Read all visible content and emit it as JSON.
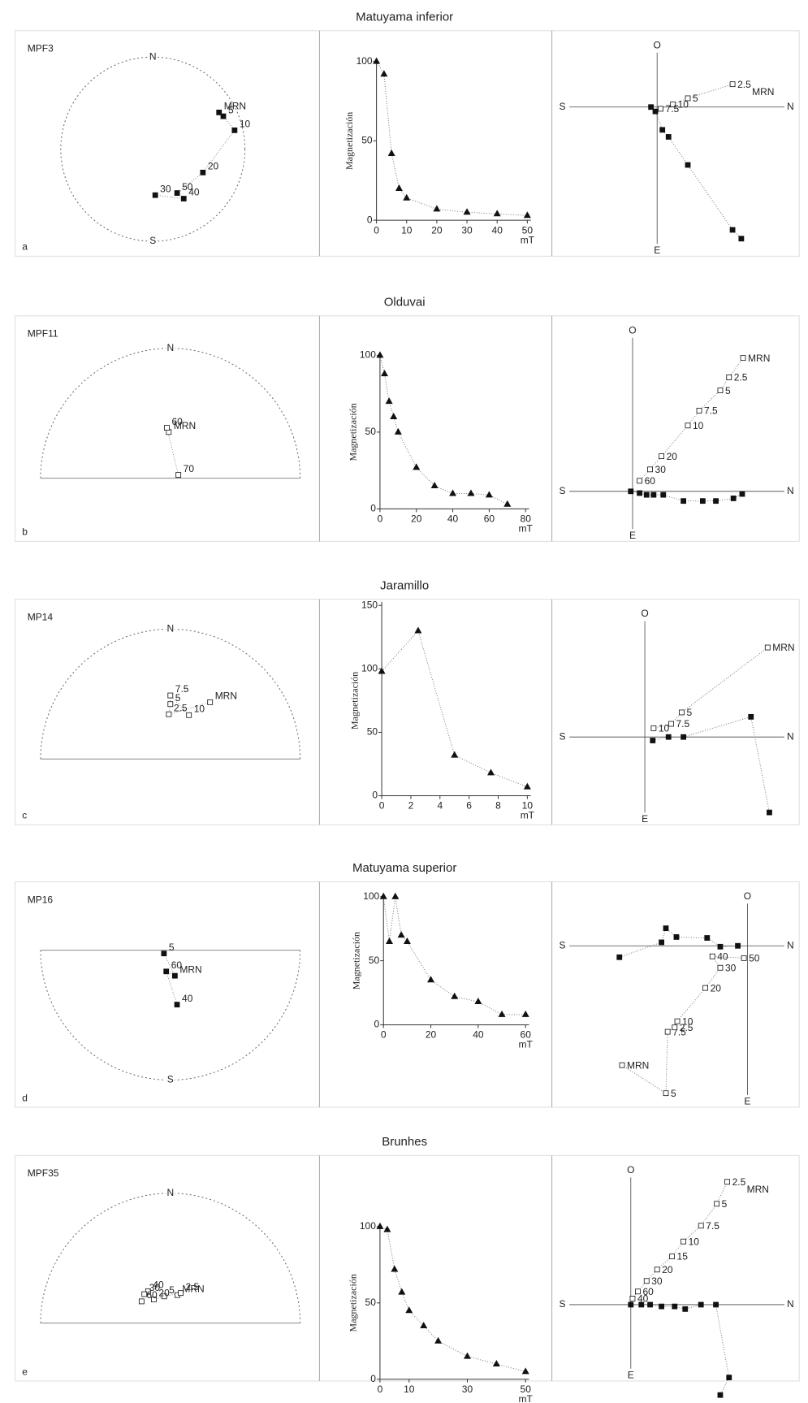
{
  "figure": {
    "rows": [
      {
        "title": "Matuyama inferior",
        "panel_label": "a",
        "sample": "MPF3",
        "stereonet": {
          "hemisphere": "full",
          "north_label": "N",
          "south_label": "S",
          "points": [
            {
              "label": "MRN",
              "dec": 61,
              "inc": 16
            },
            {
              "label": "5",
              "dec": 65,
              "inc": 14
            },
            {
              "label": "10",
              "dec": 77,
              "inc": 8
            },
            {
              "label": "20",
              "dec": 115,
              "inc": 36
            },
            {
              "label": "50",
              "dec": 151,
              "inc": 41
            },
            {
              "label": "40",
              "dec": 148,
              "inc": 33
            },
            {
              "label": "30",
              "dec": 177,
              "inc": 45
            }
          ]
        },
        "demag": {
          "type": "line",
          "y_label": "Magnetización",
          "x_unit": "mT",
          "x": [
            0,
            2.5,
            5,
            7.5,
            10,
            20,
            30,
            40,
            50
          ],
          "values": [
            100,
            92,
            42,
            20,
            14,
            7,
            5,
            4,
            3
          ],
          "xlim": [
            0,
            50
          ],
          "ylim": [
            0,
            100
          ],
          "xticks": [
            0,
            10,
            20,
            30,
            40,
            50
          ],
          "yticks": [
            0,
            50,
            100
          ]
        },
        "zijderveld": {
          "axis_labels": {
            "up": "O",
            "left": "S",
            "right": "N",
            "down": "E"
          },
          "horizontal": [
            {
              "n": -7,
              "e": 0
            },
            {
              "n": -2,
              "e": 5
            },
            {
              "n": 6,
              "e": 26
            },
            {
              "n": 13,
              "e": 34
            },
            {
              "n": 35,
              "e": 66
            },
            {
              "n": 86,
              "e": 140
            },
            {
              "n": 96,
              "e": 150
            }
          ],
          "vertical": [
            {
              "n": 86,
              "up": 26,
              "label": "2.5"
            },
            {
              "n": 35,
              "up": 10,
              "label": "5"
            },
            {
              "n": 18,
              "up": 3,
              "label": "10"
            },
            {
              "n": 4,
              "up": -2,
              "label": "7.5"
            }
          ],
          "mrn_label": "MRN"
        }
      },
      {
        "title": "Olduvai",
        "panel_label": "b",
        "sample": "MPF11",
        "stereonet": {
          "hemisphere": "upper",
          "north_label": "N",
          "points": [
            {
              "label": "MRN",
              "dec": 358,
              "inc": -58
            },
            {
              "label": "60",
              "dec": 356,
              "inc": -55
            },
            {
              "label": "70",
              "dec": 68,
              "inc": -84
            }
          ]
        },
        "demag": {
          "type": "line",
          "y_label": "Magnetización",
          "x_unit": "mT",
          "x": [
            0,
            2.5,
            5,
            7.5,
            10,
            20,
            30,
            40,
            50,
            60,
            70
          ],
          "values": [
            100,
            88,
            70,
            60,
            50,
            27,
            15,
            10,
            10,
            9,
            3
          ],
          "xlim": [
            0,
            80
          ],
          "ylim": [
            0,
            100
          ],
          "xticks": [
            0,
            20,
            40,
            60,
            80
          ],
          "yticks": [
            0,
            50,
            100
          ]
        },
        "zijderveld": {
          "axis_labels": {
            "up": "O",
            "left": "S",
            "right": "N",
            "down": "E"
          },
          "horizontal": [
            {
              "n": -2,
              "e": 0
            },
            {
              "n": 8,
              "e": 2
            },
            {
              "n": 16,
              "e": 4
            },
            {
              "n": 24,
              "e": 4
            },
            {
              "n": 35,
              "e": 4
            },
            {
              "n": 58,
              "e": 11
            },
            {
              "n": 80,
              "e": 11
            },
            {
              "n": 95,
              "e": 11
            },
            {
              "n": 115,
              "e": 8
            },
            {
              "n": 125,
              "e": 3
            }
          ],
          "vertical": [
            {
              "n": 126,
              "up": 152,
              "label": "MRN"
            },
            {
              "n": 110,
              "up": 130,
              "label": "2.5"
            },
            {
              "n": 100,
              "up": 115,
              "label": "5"
            },
            {
              "n": 76,
              "up": 92,
              "label": "7.5"
            },
            {
              "n": 63,
              "up": 75,
              "label": "10"
            },
            {
              "n": 33,
              "up": 40,
              "label": "20"
            },
            {
              "n": 20,
              "up": 25,
              "label": "30"
            },
            {
              "n": 8,
              "up": 12,
              "label": "60"
            }
          ]
        }
      },
      {
        "title": "Jaramillo",
        "panel_label": "c",
        "sample": "MP14",
        "stereonet": {
          "hemisphere": "upper",
          "north_label": "N",
          "points": [
            {
              "label": "MRN",
              "dec": 35,
              "inc": -42
            },
            {
              "label": "2.5",
              "dec": 358,
              "inc": -59
            },
            {
              "label": "5",
              "dec": 0,
              "inc": -52
            },
            {
              "label": "7.5",
              "dec": 0,
              "inc": -46
            },
            {
              "label": "10",
              "dec": 23,
              "inc": -57
            }
          ]
        },
        "demag": {
          "type": "line",
          "y_label": "Magnetización",
          "x_unit": "mT",
          "x": [
            0,
            2.5,
            5,
            7.5,
            10
          ],
          "values": [
            98,
            130,
            32,
            18,
            7
          ],
          "xlim": [
            0,
            10
          ],
          "ylim": [
            0,
            150
          ],
          "xticks": [
            0,
            2,
            4,
            6,
            8,
            10
          ],
          "yticks": [
            0,
            50,
            100,
            150
          ]
        },
        "zijderveld": {
          "axis_labels": {
            "up": "O",
            "left": "S",
            "right": "N",
            "down": "E"
          },
          "horizontal": [
            {
              "n": 9,
              "e": 4
            },
            {
              "n": 27,
              "e": 0
            },
            {
              "n": 44,
              "e": 0
            },
            {
              "n": 121,
              "e": -23
            },
            {
              "n": 142,
              "e": 86
            }
          ],
          "vertical": [
            {
              "n": 140,
              "up": 102,
              "label": "MRN"
            },
            {
              "n": 42,
              "up": 28,
              "label": "5"
            },
            {
              "n": 30,
              "up": 15,
              "label": "7.5"
            },
            {
              "n": 10,
              "up": 10,
              "label": "10"
            }
          ]
        }
      },
      {
        "title": "Matuyama superior",
        "panel_label": "d",
        "sample": "MP16",
        "stereonet": {
          "hemisphere": "lower",
          "south_label": "S",
          "points": [
            {
              "label": "5",
              "dec": 243,
              "inc": 85
            },
            {
              "label": "MRN",
              "dec": 170,
              "inc": 72
            },
            {
              "label": "60",
              "dec": 191,
              "inc": 75
            },
            {
              "label": "40",
              "dec": 173,
              "inc": 52
            }
          ]
        },
        "demag": {
          "type": "line",
          "y_label": "Magnetización",
          "x_unit": "mT",
          "x": [
            0,
            2.5,
            5,
            7.5,
            10,
            20,
            30,
            40,
            50,
            60
          ],
          "values": [
            100,
            65,
            100,
            70,
            65,
            35,
            22,
            18,
            8,
            8
          ],
          "xlim": [
            0,
            60
          ],
          "ylim": [
            0,
            100
          ],
          "xticks": [
            0,
            20,
            40,
            60
          ],
          "yticks": [
            0,
            50,
            100
          ]
        },
        "zijderveld": {
          "axis_labels": {
            "up": "O",
            "left": "S",
            "right": "N",
            "down": "E"
          },
          "horizontal": [
            {
              "n": -146,
              "e": 13
            },
            {
              "n": -98,
              "e": -4
            },
            {
              "n": -93,
              "e": -20
            },
            {
              "n": -81,
              "e": -10
            },
            {
              "n": -46,
              "e": -9
            },
            {
              "n": -31,
              "e": 1
            },
            {
              "n": -11,
              "e": 0
            }
          ],
          "vertical": [
            {
              "n": -143,
              "up": -136,
              "label": "MRN"
            },
            {
              "n": -93,
              "up": -168,
              "label": "5"
            },
            {
              "n": -91,
              "up": -98,
              "label": "7.5"
            },
            {
              "n": -83,
              "up": -93,
              "label": "2.5"
            },
            {
              "n": -80,
              "up": -86,
              "label": "10"
            },
            {
              "n": -48,
              "up": -48,
              "label": "20"
            },
            {
              "n": -31,
              "up": -25,
              "label": "30"
            },
            {
              "n": -40,
              "up": -12,
              "label": "40"
            },
            {
              "n": -4,
              "up": -14,
              "label": "50"
            }
          ]
        }
      },
      {
        "title": "Brunhes",
        "panel_label": "e",
        "sample": "MPF35",
        "stereonet": {
          "hemisphere": "upper",
          "north_label": "N",
          "points": [
            {
              "label": "MRN",
              "dec": 14,
              "inc": -70
            },
            {
              "label": "2.5",
              "dec": 19,
              "inc": -68
            },
            {
              "label": "5",
              "dec": 347,
              "inc": -71
            },
            {
              "label": "20",
              "dec": 325,
              "inc": -70
            },
            {
              "label": "40",
              "dec": 325,
              "inc": -63
            },
            {
              "label": "30",
              "dec": 318,
              "inc": -63
            },
            {
              "label": "60",
              "dec": 307,
              "inc": -65
            }
          ]
        },
        "demag": {
          "type": "line",
          "y_label": "Magnetización",
          "x_unit": "mT",
          "x": [
            0,
            2.5,
            5,
            7.5,
            10,
            15,
            20,
            30,
            40,
            50
          ],
          "values": [
            100,
            98,
            72,
            57,
            45,
            35,
            25,
            15,
            10,
            5
          ],
          "xlim": [
            0,
            50
          ],
          "ylim": [
            0,
            100
          ],
          "xticks": [
            0,
            10,
            30,
            50
          ],
          "yticks": [
            0,
            50,
            100
          ]
        },
        "zijderveld": {
          "axis_labels": {
            "up": "O",
            "left": "S",
            "right": "N",
            "down": "E"
          },
          "horizontal": [
            {
              "n": 0,
              "e": 0
            },
            {
              "n": 12,
              "e": 0
            },
            {
              "n": 22,
              "e": 0
            },
            {
              "n": 35,
              "e": 2
            },
            {
              "n": 50,
              "e": 2
            },
            {
              "n": 62,
              "e": 5
            },
            {
              "n": 80,
              "e": 0
            },
            {
              "n": 97,
              "e": 0
            },
            {
              "n": 112,
              "e": 83
            },
            {
              "n": 102,
              "e": 103
            }
          ],
          "vertical": [
            {
              "n": 110,
              "up": 140,
              "label": "2.5"
            },
            {
              "n": 98,
              "up": 115,
              "label": "5"
            },
            {
              "n": 80,
              "up": 90,
              "label": "7.5"
            },
            {
              "n": 60,
              "up": 72,
              "label": "10"
            },
            {
              "n": 47,
              "up": 55,
              "label": "15"
            },
            {
              "n": 30,
              "up": 40,
              "label": "20"
            },
            {
              "n": 18,
              "up": 27,
              "label": "30"
            },
            {
              "n": 8,
              "up": 15,
              "label": "60"
            },
            {
              "n": 2,
              "up": 7,
              "label": "40"
            }
          ],
          "mrn_label": "MRN"
        }
      }
    ]
  }
}
